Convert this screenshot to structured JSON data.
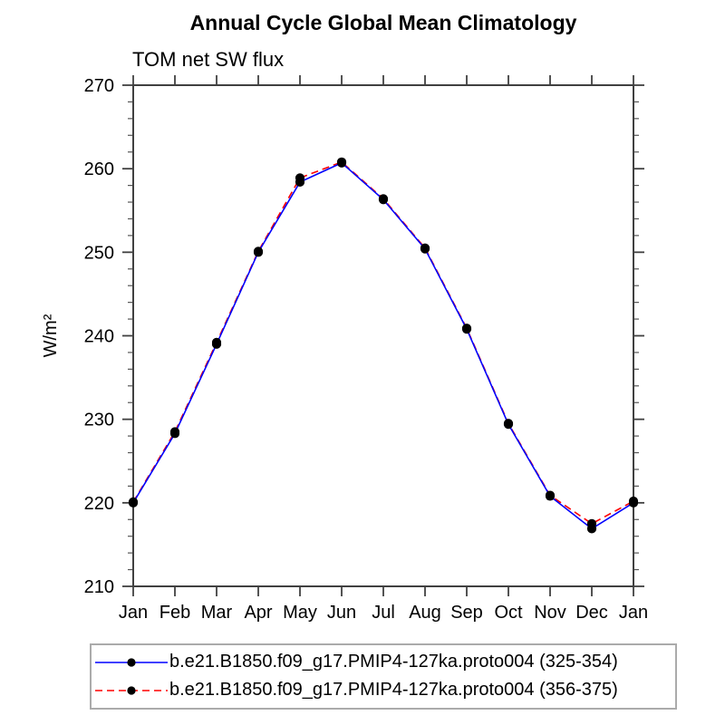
{
  "chart_data": {
    "type": "line",
    "title": "Annual Cycle Global Mean Climatology",
    "subtitle": "TOM net SW flux",
    "xlabel": "",
    "ylabel": "W/m²",
    "categories": [
      "Jan",
      "Feb",
      "Mar",
      "Apr",
      "May",
      "Jun",
      "Jul",
      "Aug",
      "Sep",
      "Oct",
      "Nov",
      "Dec",
      "Jan"
    ],
    "ylim": [
      210,
      270
    ],
    "y_major_step": 10,
    "y_minor_step": 2,
    "y_tick_labels": [
      "210",
      "220",
      "230",
      "240",
      "250",
      "260",
      "270"
    ],
    "grid": false,
    "legend_position": "bottom",
    "axis_color": "#404040",
    "marker_color": "#000000",
    "series": [
      {
        "name": "b.e21.B1850.f09_g17.PMIP4-127ka.proto004 (325-354)",
        "color": "#0000ff",
        "line_style": "solid",
        "marker": "filled-circle",
        "values": [
          220.0,
          228.3,
          239.0,
          250.0,
          258.4,
          260.7,
          256.3,
          250.4,
          240.8,
          229.4,
          220.8,
          216.9,
          220.0
        ]
      },
      {
        "name": "b.e21.B1850.f09_g17.PMIP4-127ka.proto004 (356-375)",
        "color": "#ff0000",
        "line_style": "dashed",
        "marker": "filled-circle",
        "values": [
          220.1,
          228.5,
          239.2,
          250.1,
          258.9,
          260.8,
          256.4,
          250.5,
          240.9,
          229.5,
          220.9,
          217.5,
          220.2
        ]
      }
    ]
  }
}
